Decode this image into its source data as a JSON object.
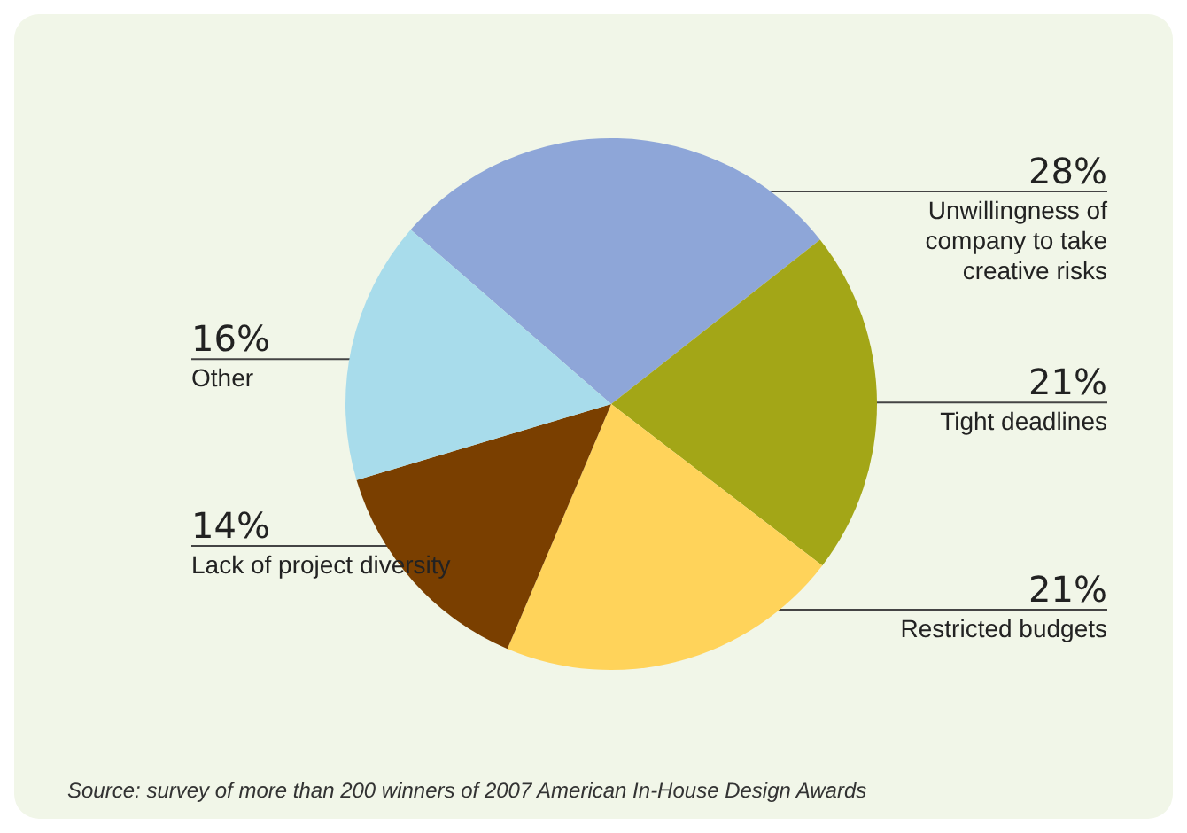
{
  "chart_data": {
    "type": "pie",
    "categories": [
      "Unwillingness of company to take creative risks",
      "Tight deadlines",
      "Restricted budgets",
      "Lack of project diversity",
      "Other"
    ],
    "values": [
      28,
      21,
      21,
      14,
      16
    ],
    "value_labels": [
      "28%",
      "21%",
      "21%",
      "14%",
      "16%"
    ],
    "colors": [
      "#8ea6d8",
      "#a3a617",
      "#ffd35a",
      "#7a3f00",
      "#a8dceb"
    ],
    "legend": false,
    "annotations": [
      "Source: survey of more than 200 winners of 2007 American In-House Design Awards"
    ]
  }
}
